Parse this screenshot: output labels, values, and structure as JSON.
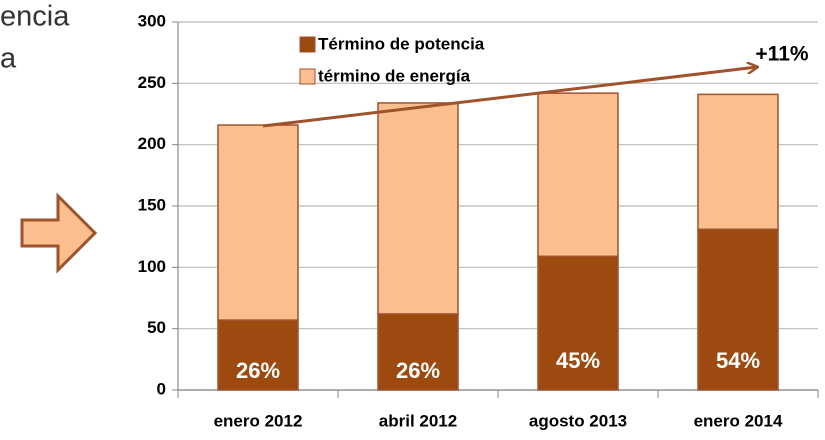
{
  "side_text": [
    "encia",
    "a"
  ],
  "chart_data": {
    "type": "stacked_bar",
    "categories": [
      "enero 2012",
      "abril 2012",
      "agosto 2013",
      "enero 2014"
    ],
    "series": [
      {
        "name": "Término de potencia",
        "color": "#9c4a10",
        "values": [
          57,
          62,
          109,
          131
        ]
      },
      {
        "name": "término de energía",
        "color": "#fbbf8f",
        "values": [
          159,
          172,
          133,
          110
        ]
      }
    ],
    "share_labels": [
      "26%",
      "26%",
      "45%",
      "54%"
    ],
    "annotation": "+11%",
    "ylim": [
      0,
      300
    ],
    "yticks": [
      0,
      50,
      100,
      150,
      200,
      250,
      300
    ],
    "grid": true
  }
}
